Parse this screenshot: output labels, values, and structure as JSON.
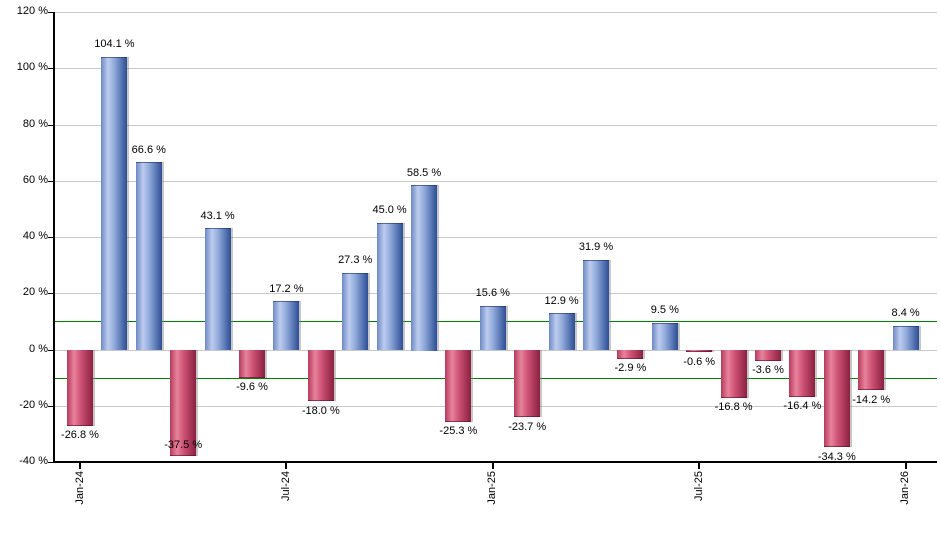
{
  "chart_data": {
    "type": "bar",
    "title": "",
    "xlabel": "",
    "ylabel": "",
    "grid": true,
    "legend": false,
    "y_axis": {
      "ylim": [
        -40,
        120
      ],
      "tick_values": [
        120,
        100,
        80,
        60,
        40,
        20,
        0,
        -20,
        -40
      ],
      "tick_labels": [
        "120 %",
        "100 %",
        "80 %",
        "60 %",
        "40 %",
        "20 %",
        "0 %",
        "-20 %",
        "-40 %"
      ]
    },
    "x_axis": {
      "tick_indices": [
        0,
        6,
        12,
        18,
        24
      ],
      "tick_labels": [
        "Jan-24",
        "Jul-24",
        "Jan-25",
        "Jul-25",
        "Jan-26"
      ]
    },
    "values": [
      -26.8,
      104.1,
      66.6,
      -37.5,
      43.1,
      -9.6,
      17.2,
      -18.0,
      27.3,
      45.0,
      58.5,
      -25.3,
      15.6,
      -23.7,
      12.9,
      31.9,
      -2.9,
      9.5,
      -0.6,
      -16.8,
      -3.6,
      -16.4,
      -34.3,
      -14.2,
      8.4
    ],
    "value_labels": [
      "-26.8 %",
      "104.1 %",
      "66.6 %",
      "-37.5 %",
      "43.1 %",
      "-9.6 %",
      "17.2 %",
      "-18.0 %",
      "27.3 %",
      "45.0 %",
      "58.5 %",
      "-25.3 %",
      "15.6 %",
      "-23.7 %",
      "12.9 %",
      "31.9 %",
      "-2.9 %",
      "9.5 %",
      "-0.6 %",
      "-16.8 %",
      "-3.6 %",
      "-16.4 %",
      "-34.3 %",
      "-14.2 %",
      "8.4 %"
    ],
    "reference_lines": {
      "values": [
        10,
        -10
      ],
      "color": "#008000"
    },
    "colors": {
      "positive_bar_edge": "#6d89c4",
      "positive_bar_highlight": "#bdccee",
      "positive_bar_mid": "#8ea8d9",
      "positive_bar_dark": "#2d4e95",
      "negative_bar_edge": "#b43a5c",
      "negative_bar_highlight": "#e8839c",
      "negative_bar_mid": "#cf5376",
      "negative_bar_dark": "#8a2040",
      "grid": "#c9c9c9",
      "axis": "#000000",
      "label_text": "#000000"
    }
  }
}
